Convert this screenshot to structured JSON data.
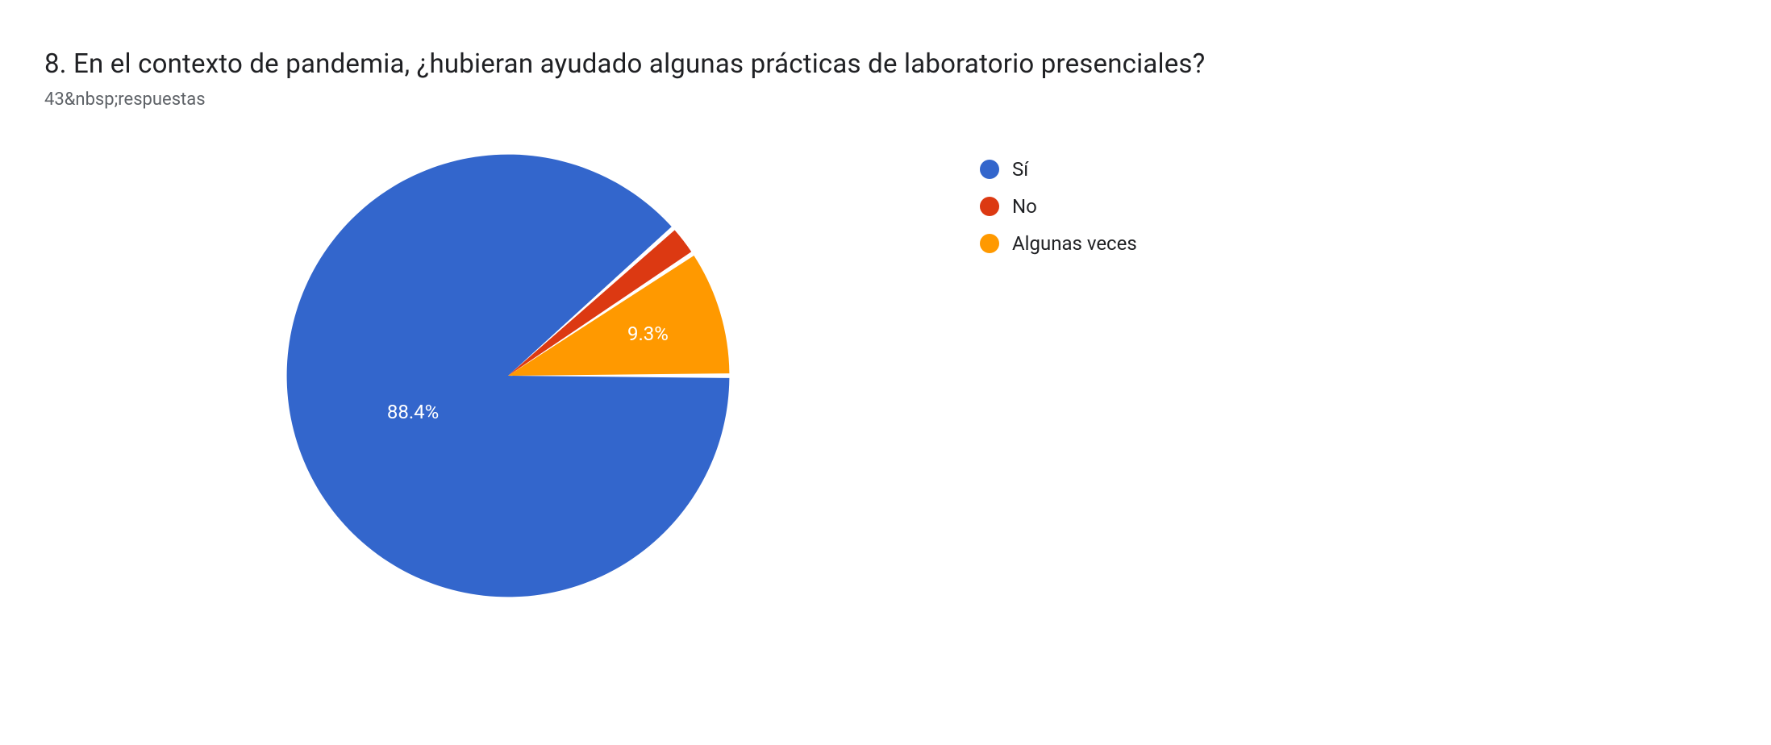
{
  "title": "8. En el contexto de pandemia, ¿hubieran ayudado algunas prácticas de laboratorio presenciales?",
  "subtitle": "43&nbsp;respuestas",
  "chart": {
    "type": "pie",
    "background_color": "#ffffff",
    "slice_gap_deg": 1.2,
    "slices": [
      {
        "label": "Sí",
        "value": 88.4,
        "display": "88.4%",
        "color": "#3366cc",
        "show_label": true
      },
      {
        "label": "No",
        "value": 2.3,
        "display": "2.3%",
        "color": "#dc3912",
        "show_label": false
      },
      {
        "label": "Algunas veces",
        "value": 9.3,
        "display": "9.3%",
        "color": "#ff9900",
        "show_label": true
      }
    ],
    "label_fontsize": 24,
    "label_color": "#ffffff",
    "legend_fontsize": 24,
    "legend_text_color": "#202124",
    "start_angle_deg": 0
  }
}
